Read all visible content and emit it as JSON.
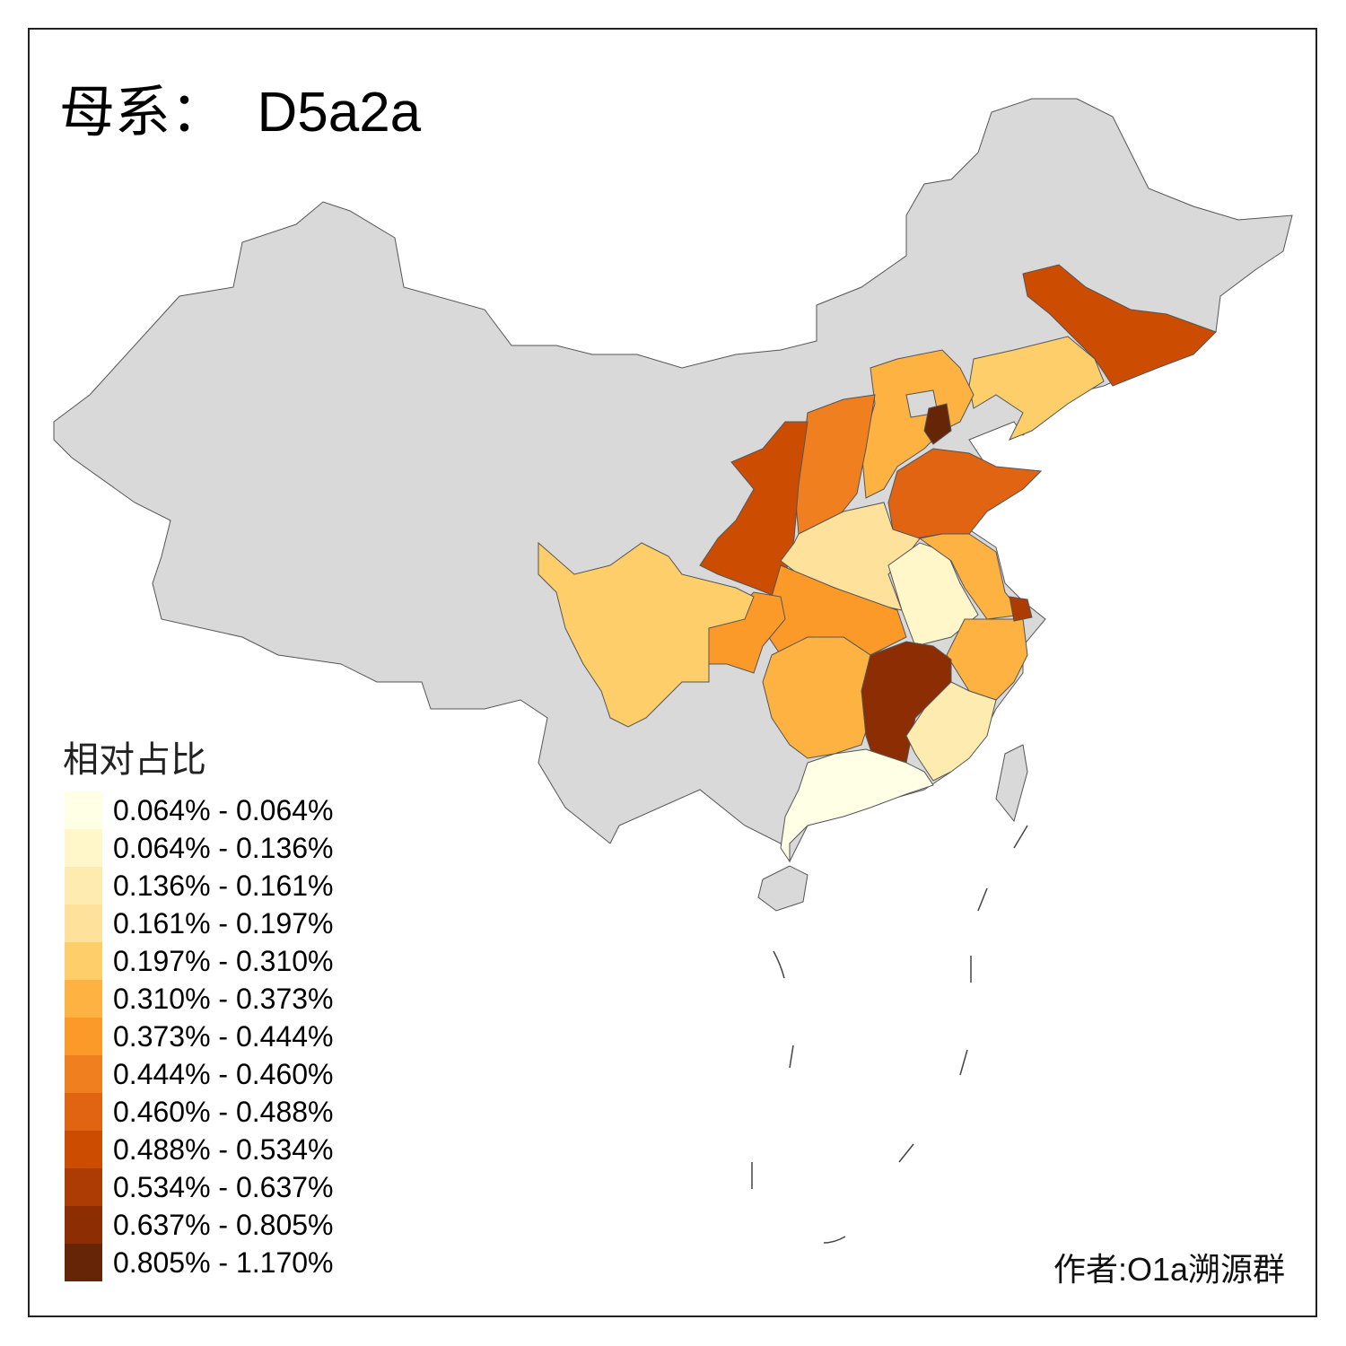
{
  "title": "母系：  D5a2a",
  "legend": {
    "title": "相对占比",
    "classes": [
      {
        "label": "0.064% - 0.064%",
        "color": "#FFFFE5"
      },
      {
        "label": "0.064% - 0.136%",
        "color": "#FFF7C9"
      },
      {
        "label": "0.136% - 0.161%",
        "color": "#FEEBB0"
      },
      {
        "label": "0.161% - 0.197%",
        "color": "#FEE19A"
      },
      {
        "label": "0.197% - 0.310%",
        "color": "#FECE6B"
      },
      {
        "label": "0.310% - 0.373%",
        "color": "#FDB242"
      },
      {
        "label": "0.373% - 0.444%",
        "color": "#FB9A29"
      },
      {
        "label": "0.444% - 0.460%",
        "color": "#F07F20"
      },
      {
        "label": "0.460% - 0.488%",
        "color": "#E06412"
      },
      {
        "label": "0.488% - 0.534%",
        "color": "#CC4C02"
      },
      {
        "label": "0.534% - 0.637%",
        "color": "#AC3C03"
      },
      {
        "label": "0.637% - 0.805%",
        "color": "#8C2D04"
      },
      {
        "label": "0.805% - 1.170%",
        "color": "#662506"
      }
    ]
  },
  "no_data_color": "#D9D9D9",
  "regions": [
    {
      "id": "jilin",
      "class": 9
    },
    {
      "id": "liaoning",
      "class": 4
    },
    {
      "id": "hebei",
      "class": 5
    },
    {
      "id": "beijing",
      "class": null
    },
    {
      "id": "tianjin",
      "class": 12
    },
    {
      "id": "shanxi",
      "class": 7
    },
    {
      "id": "shaanxi",
      "class": 9
    },
    {
      "id": "shandong",
      "class": 8
    },
    {
      "id": "henan",
      "class": 3
    },
    {
      "id": "anhui",
      "class": 1
    },
    {
      "id": "jiangsu",
      "class": 5
    },
    {
      "id": "shanghai",
      "class": 10
    },
    {
      "id": "zhejiang",
      "class": 5
    },
    {
      "id": "hubei",
      "class": 6
    },
    {
      "id": "chongqing",
      "class": 6
    },
    {
      "id": "sichuan",
      "class": 4
    },
    {
      "id": "hunan",
      "class": 5
    },
    {
      "id": "jiangxi",
      "class": 11
    },
    {
      "id": "fujian",
      "class": 2
    },
    {
      "id": "guangdong",
      "class": 0
    },
    {
      "id": "hainan",
      "class": null
    },
    {
      "id": "taiwan",
      "class": null
    }
  ],
  "author": "作者:O1a溯源群"
}
